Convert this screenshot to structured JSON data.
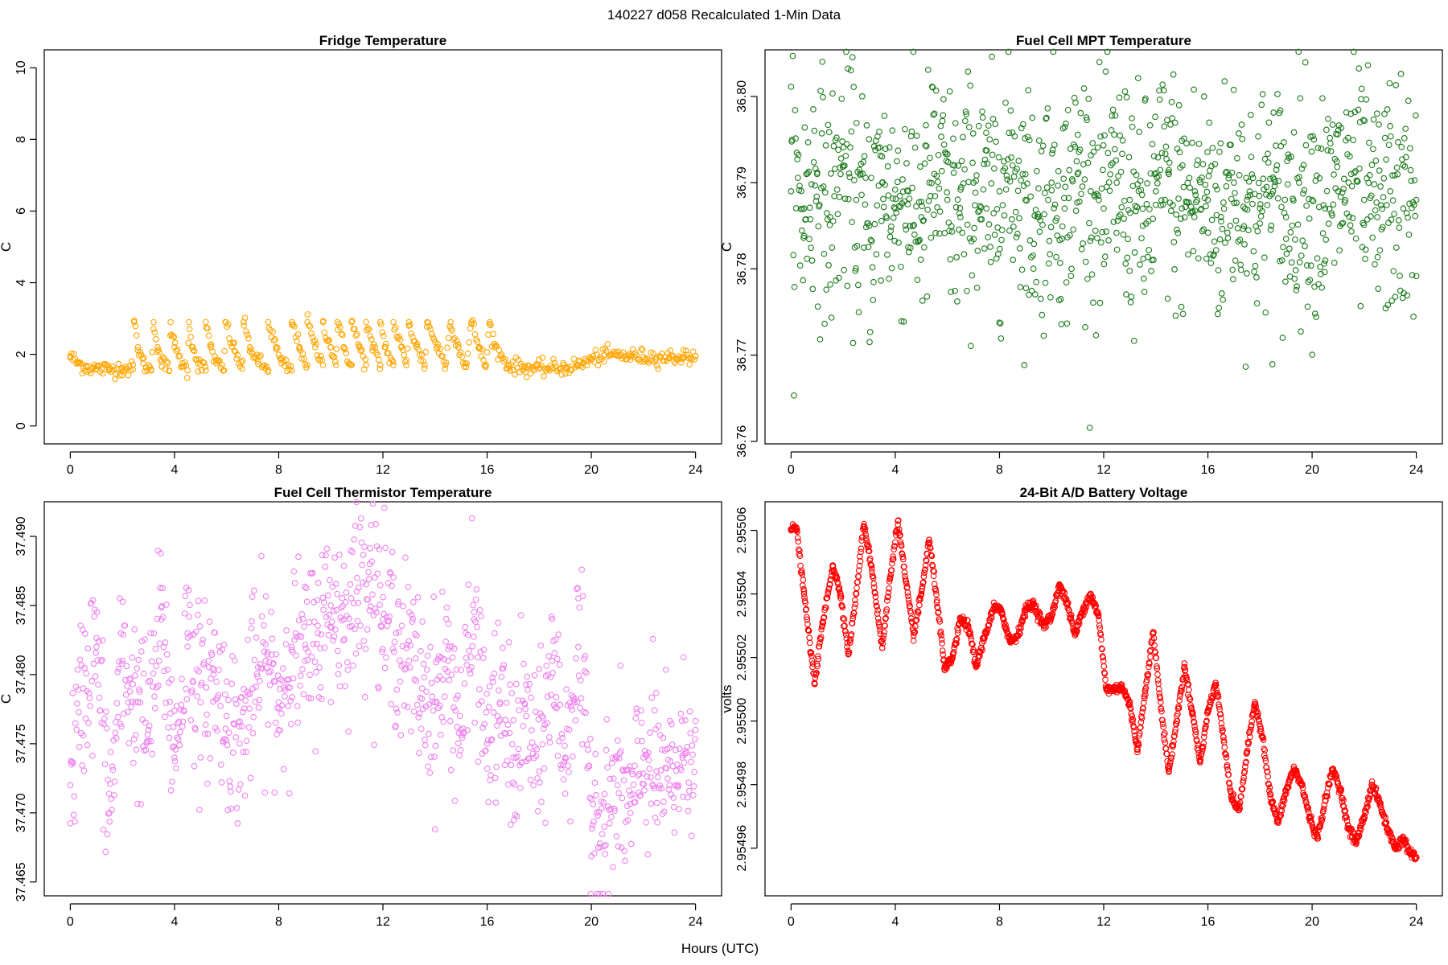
{
  "figure": {
    "suptitle": "140227   d058   Recalculated 1-Min Data",
    "xlabel": "Hours (UTC)"
  },
  "chart_data": [
    {
      "type": "scatter",
      "title": "Fridge Temperature",
      "ylabel": "C",
      "xlabel": "Hours (UTC)",
      "xlim": [
        -1,
        25
      ],
      "ylim": [
        -0.5,
        10.5
      ],
      "xticks": [
        0,
        4,
        8,
        12,
        16,
        20,
        24
      ],
      "xtick_labels": [
        "0",
        "4",
        "8",
        "12",
        "16",
        "20",
        "24"
      ],
      "yticks": [
        0,
        2,
        4,
        6,
        8,
        10
      ],
      "ytick_labels": [
        "0",
        "2",
        "4",
        "6",
        "8",
        "10"
      ],
      "color": "#FFA500",
      "grid": false,
      "series": [
        {
          "x": [
            0,
            0.3,
            0.6,
            1.0,
            1.5,
            2.0,
            2.4,
            2.45,
            2.6,
            2.8,
            3.1,
            3.2,
            3.35,
            3.5,
            3.8,
            3.85,
            4.0,
            4.3,
            4.5,
            4.55,
            4.7,
            4.9,
            5.2,
            5.2,
            5.4,
            5.6,
            5.9,
            5.95,
            6.3,
            6.6,
            6.65,
            6.9,
            7.2,
            7.6,
            7.6,
            7.9,
            8.1,
            8.5,
            8.5,
            8.8,
            9.1,
            9.1,
            9.4,
            9.7,
            9.7,
            10.0,
            10.2,
            10.25,
            10.5,
            10.8,
            10.8,
            11.1,
            11.35,
            11.35,
            11.6,
            11.9,
            11.9,
            12.1,
            12.4,
            12.4,
            12.7,
            12.9,
            13.0,
            13.3,
            13.6,
            13.7,
            14.1,
            14.4,
            14.6,
            14.9,
            15.2,
            15.4,
            15.7,
            15.95,
            16.1,
            16.3,
            16.8,
            17.5,
            18.0,
            18.5,
            19.0,
            19.5,
            20.0,
            20.5,
            21.0,
            21.5,
            22.0,
            22.5,
            23.0,
            23.5,
            24.0
          ],
          "y": [
            1.95,
            1.75,
            1.65,
            1.6,
            1.58,
            1.62,
            1.58,
            2.9,
            2.2,
            1.75,
            1.55,
            2.9,
            2.2,
            1.8,
            1.55,
            2.9,
            2.2,
            1.75,
            1.55,
            2.9,
            2.2,
            1.75,
            1.55,
            2.9,
            2.2,
            1.75,
            1.55,
            2.9,
            2.1,
            1.6,
            2.9,
            2.2,
            1.8,
            1.55,
            2.9,
            2.2,
            1.75,
            1.55,
            2.9,
            2.2,
            1.7,
            2.9,
            2.2,
            1.7,
            2.9,
            2.2,
            1.7,
            2.9,
            2.2,
            1.7,
            2.9,
            2.2,
            1.7,
            2.9,
            2.2,
            1.7,
            2.9,
            2.2,
            1.7,
            2.9,
            2.2,
            1.7,
            2.9,
            2.2,
            1.7,
            2.9,
            2.2,
            1.7,
            2.9,
            2.2,
            1.65,
            2.9,
            2.2,
            1.65,
            2.9,
            2.2,
            1.7,
            1.62,
            1.6,
            1.62,
            1.63,
            1.7,
            1.85,
            1.98,
            1.98,
            1.95,
            1.93,
            1.92,
            1.92,
            1.93,
            1.95
          ]
        }
      ]
    },
    {
      "type": "scatter",
      "title": "Fuel Cell MPT Temperature",
      "ylabel": "C",
      "xlabel": "Hours (UTC)",
      "xlim": [
        -1,
        25
      ],
      "ylim": [
        36.7597,
        36.8054
      ],
      "xticks": [
        0,
        4,
        8,
        12,
        16,
        20,
        24
      ],
      "xtick_labels": [
        "0",
        "4",
        "8",
        "12",
        "16",
        "20",
        "24"
      ],
      "yticks": [
        36.76,
        36.77,
        36.78,
        36.79,
        36.8
      ],
      "ytick_labels": [
        "36.76",
        "36.77",
        "36.78",
        "36.79",
        "36.80"
      ],
      "color": "#1B7A1B",
      "grid": false,
      "series": [
        {
          "x": [
            0,
            0.5,
            1.0,
            1.5,
            2.0,
            2.5,
            3.0,
            3.5,
            4.0,
            4.5,
            5.0,
            5.5,
            6.0,
            6.5,
            7.0,
            7.5,
            8.0,
            8.5,
            9.0,
            9.5,
            10.0,
            10.5,
            11.0,
            11.5,
            12.0,
            12.5,
            13.0,
            13.5,
            14.0,
            14.5,
            15.0,
            15.5,
            16.0,
            16.5,
            17.0,
            17.5,
            18.0,
            18.5,
            19.0,
            19.5,
            20.0,
            20.5,
            21.0,
            21.5,
            22.0,
            22.5,
            23.0,
            23.5,
            24.0
          ],
          "y": [
            36.789,
            36.787,
            36.791,
            36.786,
            36.792,
            36.788,
            36.785,
            36.79,
            36.787,
            36.789,
            36.786,
            36.791,
            36.788,
            36.786,
            36.79,
            36.787,
            36.789,
            36.792,
            36.788,
            36.786,
            36.79,
            36.787,
            36.791,
            36.789,
            36.787,
            36.79,
            36.788,
            36.785,
            36.789,
            36.791,
            36.787,
            36.789,
            36.788,
            36.786,
            36.79,
            36.788,
            36.787,
            36.789,
            36.786,
            36.79,
            36.788,
            36.787,
            36.789,
            36.791,
            36.788,
            36.786,
            36.789,
            36.787,
            36.788
          ]
        }
      ]
    },
    {
      "type": "scatter",
      "title": "Fuel Cell Thermistor Temperature",
      "ylabel": "C",
      "xlabel": "Hours (UTC)",
      "xlim": [
        -1,
        25
      ],
      "ylim": [
        37.464,
        37.4925
      ],
      "xticks": [
        0,
        4,
        8,
        12,
        16,
        20,
        24
      ],
      "xtick_labels": [
        "0",
        "4",
        "8",
        "12",
        "16",
        "20",
        "24"
      ],
      "yticks": [
        37.465,
        37.47,
        37.475,
        37.48,
        37.485,
        37.49
      ],
      "ytick_labels": [
        "37.465",
        "37.470",
        "37.475",
        "37.480",
        "37.485",
        "37.490"
      ],
      "color": "#EE82EE",
      "grid": false,
      "series": [
        {
          "x": [
            0,
            0.5,
            1.0,
            1.5,
            2.0,
            2.5,
            3.0,
            3.5,
            4.0,
            4.5,
            5.0,
            5.5,
            6.0,
            6.5,
            7.0,
            7.5,
            8.0,
            8.5,
            9.0,
            9.5,
            10.0,
            10.5,
            11.0,
            11.5,
            12.0,
            12.5,
            13.0,
            13.5,
            14.0,
            14.5,
            15.0,
            15.5,
            16.0,
            16.5,
            17.0,
            17.5,
            18.0,
            18.5,
            19.0,
            19.5,
            20.0,
            20.5,
            21.0,
            21.5,
            22.0,
            22.5,
            23.0,
            23.5,
            24.0
          ],
          "y": [
            37.472,
            37.479,
            37.482,
            37.47,
            37.481,
            37.478,
            37.476,
            37.484,
            37.474,
            37.483,
            37.478,
            37.48,
            37.477,
            37.475,
            37.479,
            37.481,
            37.478,
            37.482,
            37.481,
            37.483,
            37.485,
            37.484,
            37.486,
            37.488,
            37.484,
            37.483,
            37.481,
            37.479,
            37.478,
            37.481,
            37.476,
            37.484,
            37.475,
            37.478,
            37.474,
            37.477,
            37.473,
            37.481,
            37.474,
            37.482,
            37.471,
            37.469,
            37.472,
            37.47,
            37.474,
            37.473,
            37.472,
            37.474,
            37.476
          ]
        }
      ]
    },
    {
      "type": "scatter",
      "title": "24-Bit A/D Battery Voltage",
      "ylabel": "volts",
      "xlabel": "Hours (UTC)",
      "xlim": [
        -1,
        25
      ],
      "ylim": [
        2.954945,
        2.955069
      ],
      "xticks": [
        0,
        4,
        8,
        12,
        16,
        20,
        24
      ],
      "xtick_labels": [
        "0",
        "4",
        "8",
        "12",
        "16",
        "20",
        "24"
      ],
      "yticks": [
        2.95496,
        2.95498,
        2.955,
        2.95502,
        2.95504,
        2.95506
      ],
      "ytick_labels": [
        "2.95496",
        "2.95498",
        "2.95500",
        "2.95502",
        "2.95504",
        "2.95506"
      ],
      "color": "#FF0000",
      "grid": false,
      "series": [
        {
          "x": [
            0,
            0.2,
            0.5,
            0.9,
            1.2,
            1.6,
            1.9,
            2.2,
            2.5,
            2.8,
            3.1,
            3.5,
            3.8,
            4.1,
            4.4,
            4.7,
            5.0,
            5.3,
            5.6,
            5.9,
            6.2,
            6.5,
            6.8,
            7.1,
            7.4,
            7.8,
            8.1,
            8.4,
            8.7,
            9.0,
            9.3,
            9.7,
            10.0,
            10.3,
            10.6,
            10.9,
            11.2,
            11.5,
            11.8,
            12.1,
            12.4,
            12.7,
            13.0,
            13.3,
            13.6,
            13.9,
            14.2,
            14.5,
            14.8,
            15.1,
            15.4,
            15.7,
            16.0,
            16.3,
            16.6,
            16.9,
            17.2,
            17.5,
            17.8,
            18.1,
            18.4,
            18.7,
            19.0,
            19.3,
            19.6,
            19.9,
            20.2,
            20.5,
            20.8,
            21.1,
            21.4,
            21.7,
            22.0,
            22.3,
            22.6,
            22.9,
            23.2,
            23.5,
            23.8,
            24.0
          ],
          "y": [
            2.95506,
            2.955061,
            2.95504,
            2.955012,
            2.95503,
            2.955049,
            2.95504,
            2.955021,
            2.95504,
            2.955062,
            2.955048,
            2.955023,
            2.955045,
            2.955063,
            2.955044,
            2.955027,
            2.95504,
            2.955057,
            2.955038,
            2.955016,
            2.95502,
            2.955032,
            2.95503,
            2.955017,
            2.955026,
            2.955036,
            2.955034,
            2.955025,
            2.955027,
            2.955035,
            2.955037,
            2.95503,
            2.955033,
            2.955043,
            2.955037,
            2.955027,
            2.955035,
            2.95504,
            2.955033,
            2.95501,
            2.95501,
            2.955011,
            2.955005,
            2.954991,
            2.95501,
            2.955028,
            2.955004,
            2.954984,
            2.955,
            2.955017,
            2.955003,
            2.954987,
            2.955003,
            2.955012,
            2.954995,
            2.954976,
            2.954972,
            2.95499,
            2.955006,
            2.954995,
            2.954976,
            2.954968,
            2.954978,
            2.954985,
            2.95498,
            2.95497,
            2.954963,
            2.954975,
            2.954985,
            2.954978,
            2.954966,
            2.954962,
            2.95497,
            2.95498,
            2.954974,
            2.954966,
            2.95496,
            2.954963,
            2.954958,
            2.954957
          ]
        }
      ]
    }
  ]
}
